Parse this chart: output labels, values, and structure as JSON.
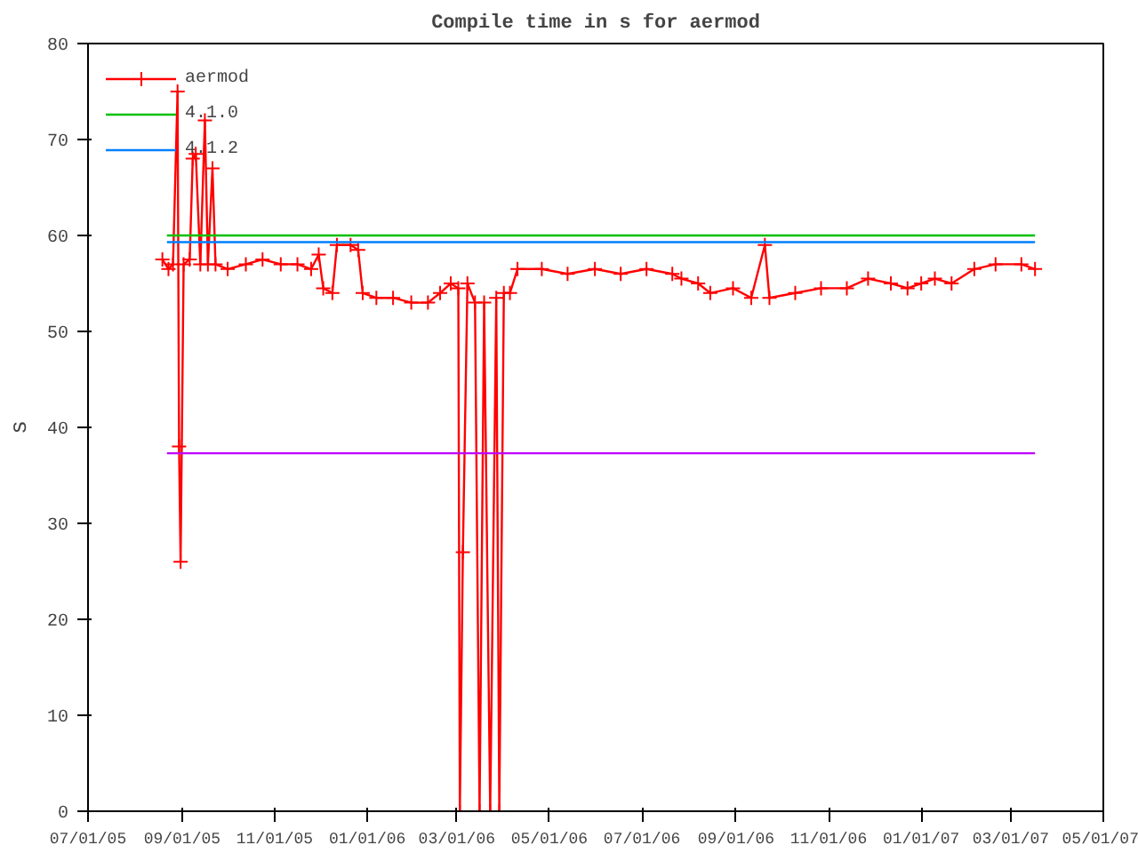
{
  "chart_data": {
    "type": "line",
    "title": "Compile time in s for aermod",
    "ylabel": "s",
    "marker": "cross",
    "grid": false,
    "legend": "top left",
    "xlim": [
      "2005-07-01",
      "2007-05-01"
    ],
    "ylim": [
      0,
      80
    ],
    "yticks": [
      0,
      10,
      20,
      30,
      40,
      50,
      60,
      70,
      80
    ],
    "xticks": [
      {
        "value": "2005-07-01",
        "label": "07/01/05"
      },
      {
        "value": "2005-09-01",
        "label": "09/01/05"
      },
      {
        "value": "2005-11-01",
        "label": "11/01/05"
      },
      {
        "value": "2006-01-01",
        "label": "01/01/06"
      },
      {
        "value": "2006-03-01",
        "label": "03/01/06"
      },
      {
        "value": "2006-05-01",
        "label": "05/01/06"
      },
      {
        "value": "2006-07-01",
        "label": "07/01/06"
      },
      {
        "value": "2006-09-01",
        "label": "09/01/06"
      },
      {
        "value": "2006-11-01",
        "label": "11/01/06"
      },
      {
        "value": "2007-01-01",
        "label": "01/01/07"
      },
      {
        "value": "2007-03-01",
        "label": "03/01/07"
      },
      {
        "value": "2007-05-01",
        "label": "05/01/07"
      }
    ],
    "series": [
      {
        "name": "aermod",
        "color": "#ff0000",
        "x": [
          "2005-08-19",
          "2005-08-23",
          "2005-08-26",
          "2005-08-29",
          "2005-08-30",
          "2005-08-31",
          "2005-09-02",
          "2005-09-06",
          "2005-09-08",
          "2005-09-10",
          "2005-09-13",
          "2005-09-16",
          "2005-09-18",
          "2005-09-21",
          "2005-09-23",
          "2005-10-01",
          "2005-10-13",
          "2005-10-24",
          "2005-11-05",
          "2005-11-16",
          "2005-11-25",
          "2005-11-30",
          "2005-12-03",
          "2005-12-09",
          "2005-12-12",
          "2005-12-21",
          "2005-12-26",
          "2005-12-29",
          "2006-01-07",
          "2006-01-18",
          "2006-01-30",
          "2006-02-10",
          "2006-02-18",
          "2006-02-25",
          "2006-03-02",
          "2006-03-03",
          "2006-03-05",
          "2006-03-08",
          "2006-03-13",
          "2006-03-16",
          "2006-03-19",
          "2006-03-23",
          "2006-03-27",
          "2006-03-29",
          "2006-04-01",
          "2006-04-05",
          "2006-04-10",
          "2006-04-26",
          "2006-05-13",
          "2006-05-31",
          "2006-06-17",
          "2006-07-04",
          "2006-07-21",
          "2006-07-27",
          "2006-08-07",
          "2006-08-15",
          "2006-08-30",
          "2006-09-11",
          "2006-09-20",
          "2006-09-23",
          "2006-10-10",
          "2006-10-27",
          "2006-11-13",
          "2006-11-27",
          "2006-12-12",
          "2006-12-23",
          "2007-01-01",
          "2007-01-10",
          "2007-01-21",
          "2007-02-05",
          "2007-02-19",
          "2007-03-08",
          "2007-03-17"
        ],
        "values": [
          57.5,
          56.5,
          57,
          75,
          38,
          26,
          57,
          57.5,
          68,
          68.5,
          57,
          72,
          57,
          67,
          57,
          56.5,
          57,
          57.5,
          57,
          57,
          56.5,
          58,
          54.5,
          54,
          59,
          59,
          58.5,
          54,
          53.5,
          53.5,
          53,
          53,
          54,
          55,
          54.5,
          0,
          27,
          55,
          53,
          0,
          53,
          0,
          53.5,
          0,
          54,
          54,
          56.5,
          56.5,
          56,
          56.5,
          56,
          56.5,
          56,
          55.5,
          55,
          54,
          54.5,
          53.5,
          59,
          53.5,
          54,
          54.5,
          54.5,
          55.5,
          55,
          54.5,
          55,
          55.5,
          55,
          56.5,
          57,
          57,
          56.5
        ]
      },
      {
        "name": "4.1.0",
        "color": "#00c000",
        "marker": "none",
        "x": [
          "2005-08-22",
          "2007-03-17"
        ],
        "values": [
          60,
          60
        ]
      },
      {
        "name": "4.1.2",
        "color": "#0080ff",
        "marker": "none",
        "x": [
          "2005-08-22",
          "2007-03-17"
        ],
        "values": [
          59.3,
          59.3
        ]
      },
      {
        "color": "#c000ff",
        "marker": "none",
        "x": [
          "2005-08-22",
          "2007-03-17"
        ],
        "values": [
          37.3,
          37.3
        ]
      }
    ]
  }
}
